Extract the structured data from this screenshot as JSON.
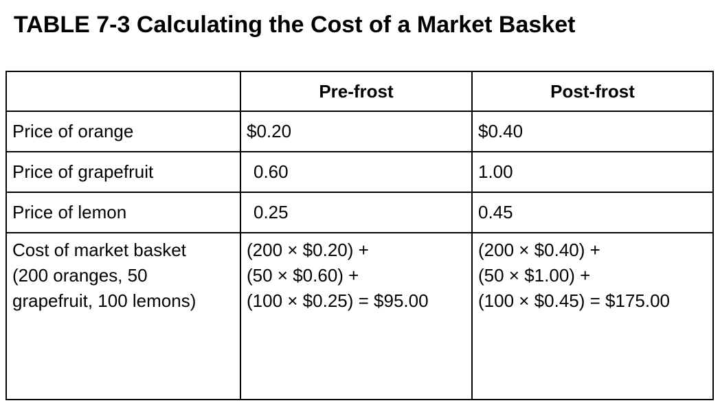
{
  "title": "TABLE 7-3 Calculating the Cost of a Market Basket",
  "table": {
    "headers": [
      "",
      "Pre-frost",
      "Post-frost"
    ],
    "rows": [
      {
        "label": "Price of orange",
        "pre": "$0.20",
        "post": "$0.40"
      },
      {
        "label": "Price of grapefruit",
        "pre": "0.60",
        "post": "1.00"
      },
      {
        "label": "Price of lemon",
        "pre": "0.25",
        "post": "0.45"
      }
    ],
    "cost_row": {
      "label_lines": [
        "Cost of market basket",
        "(200 oranges, 50",
        "grapefruit, 100 lemons)"
      ],
      "pre_lines": [
        "(200 × $0.20) +",
        "(50 × $0.60) +",
        "(100 × $0.25) = $95.00"
      ],
      "post_lines": [
        "(200 × $0.40) +",
        "(50 × $1.00) +",
        "(100 × $0.45) = $175.00"
      ]
    }
  }
}
